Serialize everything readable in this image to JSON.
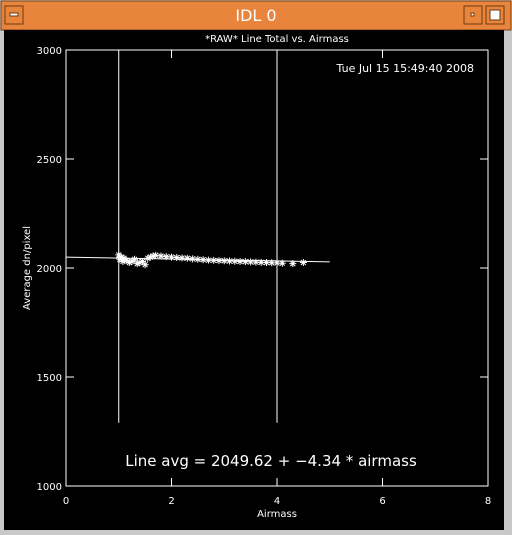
{
  "window_title": "IDL 0",
  "chart_data": {
    "type": "scatter",
    "title": "*RAW* Line Total vs. Airmass",
    "timestamp": "Tue Jul 15 15:49:40 2008",
    "x_label": "Airmass",
    "y_label": "Average dn/pixel",
    "annotation": "Line avg = 2049.62 + −4.34 * airmass",
    "xlim": [
      0,
      8
    ],
    "xticks": [
      0,
      2,
      4,
      6,
      8
    ],
    "ylim": [
      1000,
      3000
    ],
    "yticks": [
      1000,
      1500,
      2000,
      2500,
      3000
    ],
    "color": "#ffffff",
    "x": [
      1.0,
      1.02,
      1.05,
      1.08,
      1.1,
      1.15,
      1.2,
      1.25,
      1.3,
      1.35,
      1.4,
      1.45,
      1.5,
      1.55,
      1.6,
      1.65,
      1.7,
      1.8,
      1.9,
      2.0,
      2.1,
      2.2,
      2.3,
      2.4,
      2.5,
      2.6,
      2.7,
      2.8,
      2.9,
      3.0,
      3.1,
      3.2,
      3.3,
      3.4,
      3.5,
      3.6,
      3.7,
      3.8,
      3.9,
      4.0,
      4.1,
      4.3,
      4.5
    ],
    "values": [
      2060,
      2040,
      2050,
      2030,
      2045,
      2035,
      2025,
      2030,
      2040,
      2020,
      2025,
      2030,
      2015,
      2045,
      2050,
      2055,
      2058,
      2055,
      2052,
      2050,
      2048,
      2046,
      2045,
      2042,
      2040,
      2038,
      2036,
      2035,
      2034,
      2033,
      2032,
      2031,
      2030,
      2029,
      2028,
      2027,
      2026,
      2025,
      2024,
      2023,
      2022,
      2020,
      2025
    ],
    "fit": {
      "intercept": 2049.62,
      "slope": -4.34,
      "xrange": [
        0,
        5
      ]
    },
    "vlines": [
      1,
      4
    ],
    "vline_range": [
      1290,
      3000
    ]
  }
}
